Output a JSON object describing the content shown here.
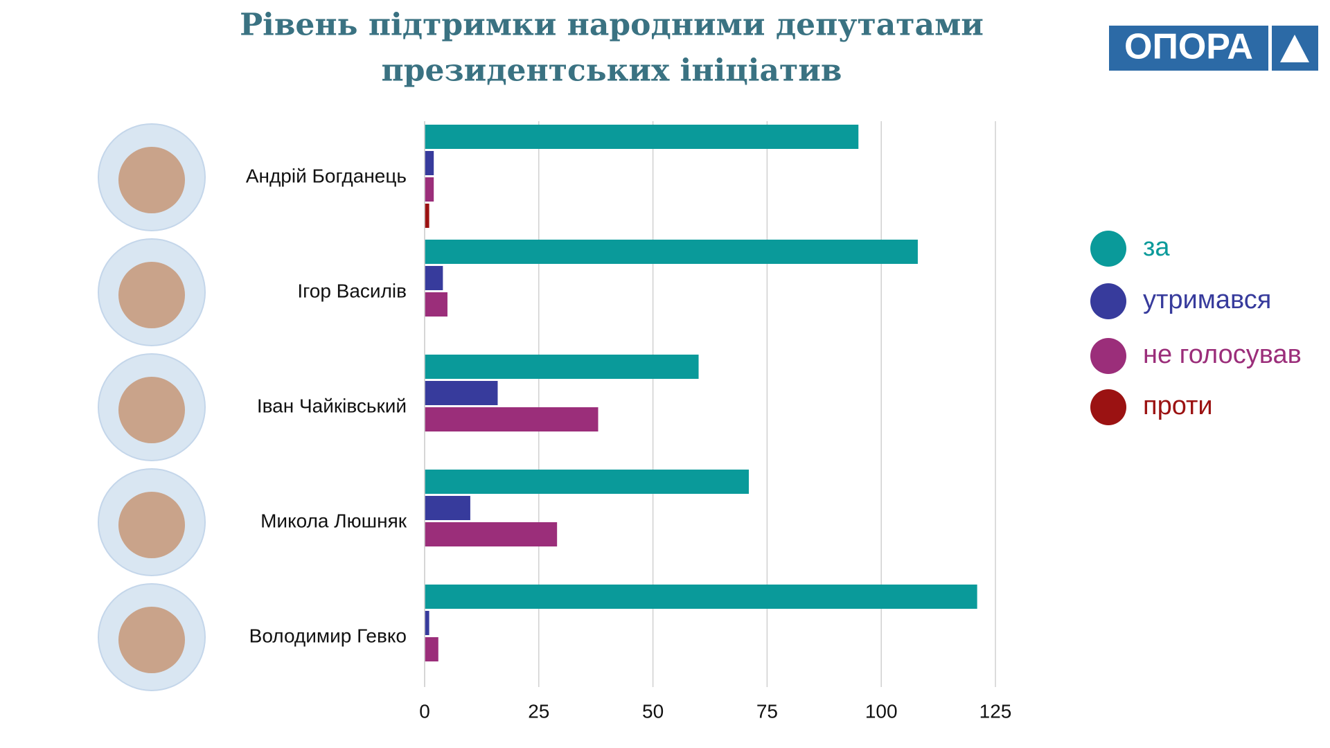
{
  "chart_data": {
    "type": "bar",
    "orientation": "horizontal",
    "title": [
      "Рівень підтримки  народними депутатами",
      "президентських ініціатив"
    ],
    "logo": "ОПОРА",
    "categories": [
      "Андрій Богданець",
      "Ігор Василів",
      "Іван Чайківський",
      "Микола Люшняк",
      "Володимир Гевко"
    ],
    "series": [
      {
        "name": "за",
        "color": "#0a9a9a",
        "values": [
          95,
          108,
          60,
          71,
          121
        ]
      },
      {
        "name": "утримався",
        "color": "#373b9c",
        "values": [
          2,
          4,
          16,
          10,
          1
        ]
      },
      {
        "name": "не голосував",
        "color": "#9b2e7a",
        "values": [
          2,
          5,
          38,
          29,
          3
        ]
      },
      {
        "name": "проти",
        "color": "#9b1212",
        "values": [
          1,
          null,
          null,
          null,
          null
        ]
      }
    ],
    "xlim": [
      0,
      125
    ],
    "xticks": [
      0,
      25,
      50,
      75,
      100,
      125
    ],
    "grid": true,
    "legend": "right"
  }
}
